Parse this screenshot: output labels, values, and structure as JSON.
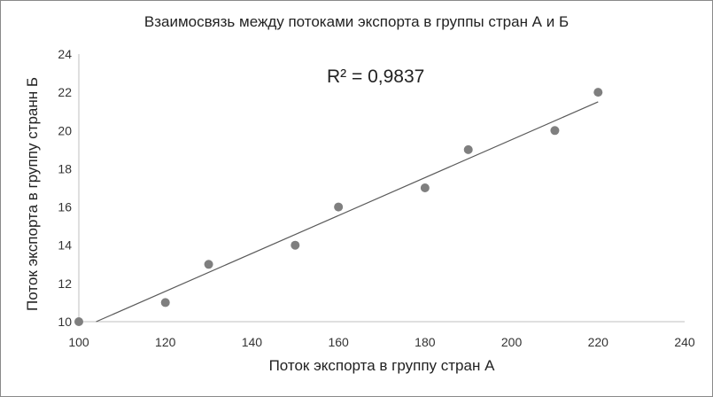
{
  "chart_data": {
    "type": "scatter",
    "title": "Взаимосвязь между потоками экспорта в группы стран А и Б",
    "xlabel": "Поток экспорта в группу стран А",
    "ylabel": "Поток экспорта в группу странн Б",
    "annotation": "R² = 0,9837",
    "xlim": [
      100,
      240
    ],
    "ylim": [
      10,
      24
    ],
    "xticks": [
      100,
      120,
      140,
      160,
      180,
      200,
      220,
      240
    ],
    "yticks": [
      10,
      12,
      14,
      16,
      18,
      20,
      22,
      24
    ],
    "grid": false,
    "legend": "none",
    "series": [
      {
        "points": [
          {
            "x": 100,
            "y": 10
          },
          {
            "x": 120,
            "y": 11
          },
          {
            "x": 130,
            "y": 13
          },
          {
            "x": 150,
            "y": 14
          },
          {
            "x": 160,
            "y": 16
          },
          {
            "x": 180,
            "y": 17
          },
          {
            "x": 190,
            "y": 19
          },
          {
            "x": 210,
            "y": 20
          },
          {
            "x": 220,
            "y": 22
          }
        ],
        "color": "#7f7f7f"
      }
    ],
    "trendline": {
      "type": "linear",
      "from": {
        "x": 104,
        "y": 10
      },
      "to": {
        "x": 220,
        "y": 21.5
      },
      "color": "#595959"
    }
  }
}
